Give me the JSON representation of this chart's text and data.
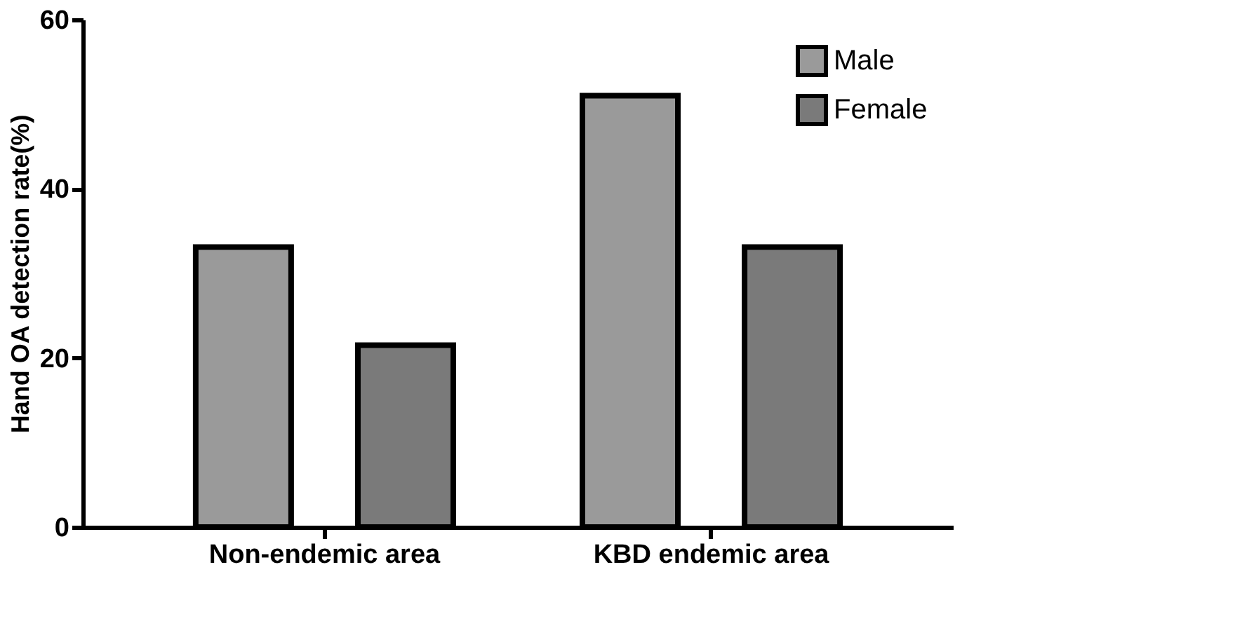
{
  "chart_data": {
    "type": "bar",
    "ylabel": "Hand OA detection rate(%)",
    "categories": [
      "Non-endemic area",
      "KBD endemic area"
    ],
    "series": [
      {
        "name": "Male",
        "color": "#9a9a9a",
        "values": [
          33.1,
          51
        ]
      },
      {
        "name": "Female",
        "color": "#7a7a7a",
        "values": [
          21.5,
          33.1
        ]
      }
    ],
    "ylim": [
      0,
      60
    ],
    "yticks": [
      0,
      20,
      40,
      60
    ],
    "grid": false,
    "legend": "top right"
  }
}
